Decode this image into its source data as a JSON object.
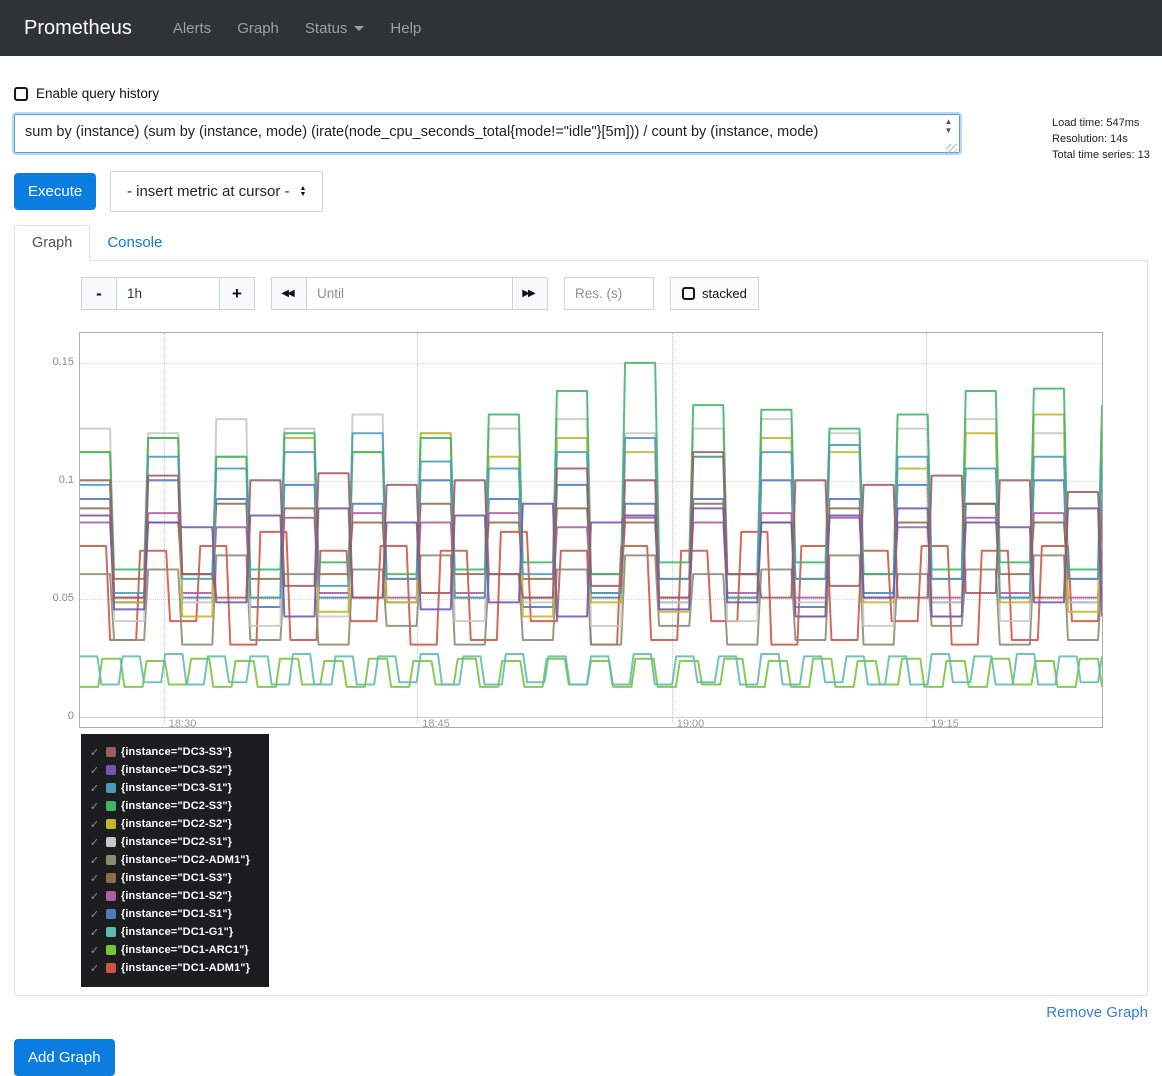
{
  "navbar": {
    "brand": "Prometheus",
    "items": [
      {
        "label": "Alerts"
      },
      {
        "label": "Graph"
      },
      {
        "label": "Status",
        "has_caret": true
      },
      {
        "label": "Help"
      }
    ]
  },
  "query": {
    "history_label": "Enable query history",
    "expression": "sum by (instance) (sum by (instance, mode) (irate(node_cpu_seconds_total{mode!=\"idle\"}[5m])) / count by (instance, mode)",
    "execute_label": "Execute",
    "insert_metric_label": "- insert metric at cursor -",
    "stats": {
      "load_time": "Load time: 547ms",
      "resolution": "Resolution: 14s",
      "total_series": "Total time series: 13"
    }
  },
  "tabs": [
    {
      "label": "Graph",
      "active": true
    },
    {
      "label": "Console",
      "active": false
    }
  ],
  "controls": {
    "minus_label": "-",
    "plus_label": "+",
    "range_value": "1h",
    "until_placeholder": "Until",
    "res_placeholder": "Res. (s)",
    "stacked_label": "stacked"
  },
  "chart_data": {
    "type": "line",
    "step": true,
    "title": "",
    "xlabel": "",
    "ylabel": "",
    "x_window_minutes": 60,
    "ylim": [
      0,
      0.163
    ],
    "grid": true,
    "legend_position": "bottom-left",
    "y_ticks": [
      {
        "v": 0,
        "label": "0"
      },
      {
        "v": 0.05,
        "label": "0.05"
      },
      {
        "v": 0.1,
        "label": "0.1"
      },
      {
        "v": 0.15,
        "label": "0.15"
      }
    ],
    "x_ticks": [
      {
        "f": 0.082,
        "label": "18:30"
      },
      {
        "f": 0.33,
        "label": "18:45"
      },
      {
        "f": 0.579,
        "label": "19:00"
      },
      {
        "f": 0.828,
        "label": "19:15"
      }
    ],
    "series": [
      {
        "name": "{instance=\"DC3-S3\"}",
        "color": "#a05b5e",
        "values": [
          0.1,
          0.05,
          0.102,
          0.06,
          0.05,
          0.1,
          0.055,
          0.103,
          0.05,
          0.098,
          0.052,
          0.1,
          0.06,
          0.05,
          0.105,
          0.055,
          0.1,
          0.05,
          0.112,
          0.06,
          0.05,
          0.1,
          0.055,
          0.098,
          0.05,
          0.102,
          0.052,
          0.1,
          0.05,
          0.095,
          0.06
        ]
      },
      {
        "name": "{instance=\"DC3-S2\"}",
        "color": "#7257b1",
        "values": [
          0.085,
          0.045,
          0.082,
          0.08,
          0.048,
          0.085,
          0.042,
          0.088,
          0.05,
          0.082,
          0.045,
          0.085,
          0.048,
          0.09,
          0.042,
          0.082,
          0.085,
          0.045,
          0.088,
          0.048,
          0.082,
          0.042,
          0.085,
          0.05,
          0.088,
          0.042,
          0.082,
          0.08,
          0.048,
          0.088,
          0.042
        ]
      },
      {
        "name": "{instance=\"DC3-S1\"}",
        "color": "#4a9cba",
        "values": [
          0.098,
          0.052,
          0.11,
          0.058,
          0.105,
          0.05,
          0.112,
          0.055,
          0.12,
          0.058,
          0.108,
          0.05,
          0.105,
          0.06,
          0.112,
          0.052,
          0.118,
          0.058,
          0.11,
          0.05,
          0.112,
          0.058,
          0.115,
          0.052,
          0.11,
          0.058,
          0.105,
          0.05,
          0.11,
          0.058,
          0.108
        ]
      },
      {
        "name": "{instance=\"DC2-S3\"}",
        "color": "#3fb666",
        "values": [
          0.112,
          0.062,
          0.118,
          0.06,
          0.11,
          0.062,
          0.12,
          0.065,
          0.112,
          0.06,
          0.118,
          0.062,
          0.128,
          0.065,
          0.138,
          0.06,
          0.15,
          0.065,
          0.132,
          0.06,
          0.13,
          0.065,
          0.122,
          0.06,
          0.128,
          0.062,
          0.138,
          0.065,
          0.139,
          0.062,
          0.132
        ]
      },
      {
        "name": "{instance=\"DC2-S2\"}",
        "color": "#c4b52e",
        "values": [
          0.112,
          0.048,
          0.118,
          0.042,
          0.11,
          0.05,
          0.118,
          0.044,
          0.112,
          0.048,
          0.12,
          0.05,
          0.11,
          0.042,
          0.118,
          0.048,
          0.112,
          0.044,
          0.11,
          0.05,
          0.118,
          0.042,
          0.112,
          0.048,
          0.105,
          0.042,
          0.12,
          0.048,
          0.128,
          0.044,
          0.118
        ]
      },
      {
        "name": "{instance=\"DC2-S1\"}",
        "color": "#c7c7c3",
        "values": [
          0.122,
          0.04,
          0.12,
          0.048,
          0.126,
          0.038,
          0.122,
          0.042,
          0.128,
          0.048,
          0.12,
          0.04,
          0.122,
          0.048,
          0.126,
          0.038,
          0.12,
          0.048,
          0.122,
          0.04,
          0.126,
          0.048,
          0.12,
          0.038,
          0.122,
          0.048,
          0.126,
          0.04,
          0.12,
          0.048,
          0.122
        ]
      },
      {
        "name": "{instance=\"DC2-ADM1\"}",
        "color": "#8b8b72",
        "values": [
          0.06,
          0.032,
          0.062,
          0.03,
          0.068,
          0.032,
          0.06,
          0.03,
          0.062,
          0.038,
          0.068,
          0.03,
          0.06,
          0.032,
          0.062,
          0.03,
          0.068,
          0.038,
          0.06,
          0.03,
          0.062,
          0.032,
          0.068,
          0.03,
          0.06,
          0.038,
          0.062,
          0.03,
          0.068,
          0.032,
          0.06
        ]
      },
      {
        "name": "{instance=\"DC1-S3\"}",
        "color": "#8c6d4c",
        "values": [
          0.088,
          0.058,
          0.082,
          0.06,
          0.09,
          0.058,
          0.088,
          0.06,
          0.082,
          0.058,
          0.09,
          0.06,
          0.082,
          0.058,
          0.088,
          0.06,
          0.082,
          0.058,
          0.09,
          0.06,
          0.082,
          0.058,
          0.088,
          0.06,
          0.082,
          0.058,
          0.09,
          0.06,
          0.082,
          0.058,
          0.088
        ]
      },
      {
        "name": "{instance=\"DC1-S2\"}",
        "color": "#aa5fa0",
        "values": [
          0.082,
          0.05,
          0.086,
          0.052,
          0.08,
          0.05,
          0.084,
          0.052,
          0.086,
          0.05,
          0.082,
          0.052,
          0.086,
          0.05,
          0.08,
          0.052,
          0.084,
          0.05,
          0.082,
          0.052,
          0.086,
          0.05,
          0.084,
          0.052,
          0.08,
          0.05,
          0.084,
          0.052,
          0.086,
          0.05,
          0.082
        ]
      },
      {
        "name": "{instance=\"DC1-S1\"}",
        "color": "#5079be",
        "values": [
          0.092,
          0.048,
          0.1,
          0.05,
          0.092,
          0.046,
          0.098,
          0.05,
          0.09,
          0.048,
          0.1,
          0.05,
          0.092,
          0.046,
          0.098,
          0.05,
          0.09,
          0.048,
          0.092,
          0.05,
          0.1,
          0.046,
          0.092,
          0.05,
          0.098,
          0.048,
          0.09,
          0.05,
          0.1,
          0.048,
          0.092
        ]
      },
      {
        "name": "{instance=\"DC1-G1\"}",
        "color": "#5dbcad",
        "values": [
          0.025,
          0.013,
          0.025,
          0.014,
          0.026,
          0.013,
          0.025,
          0.014,
          0.025,
          0.013,
          0.026,
          0.013,
          0.025,
          0.013,
          0.025,
          0.014,
          0.026,
          0.013,
          0.025,
          0.013,
          0.026,
          0.014,
          0.025,
          0.013,
          0.025,
          0.013,
          0.026,
          0.013,
          0.025,
          0.014,
          0.025,
          0.013,
          0.026,
          0.013,
          0.025,
          0.014,
          0.025,
          0.013,
          0.025,
          0.013,
          0.026,
          0.014,
          0.025,
          0.013,
          0.026,
          0.013,
          0.025,
          0.014,
          0.025
        ]
      },
      {
        "name": "{instance=\"DC1-ARC1\"}",
        "color": "#76c43e",
        "values": [
          0.012,
          0.024,
          0.012,
          0.023,
          0.013,
          0.024,
          0.012,
          0.023,
          0.012,
          0.024,
          0.013,
          0.023,
          0.012,
          0.024,
          0.012,
          0.023,
          0.013,
          0.024,
          0.012,
          0.023,
          0.012,
          0.024,
          0.013,
          0.023,
          0.012,
          0.024,
          0.012,
          0.023,
          0.013,
          0.024,
          0.012,
          0.023,
          0.012,
          0.024,
          0.012,
          0.023,
          0.013,
          0.024,
          0.012,
          0.023,
          0.012,
          0.024,
          0.013,
          0.023,
          0.012,
          0.024,
          0.012
        ]
      },
      {
        "name": "{instance=\"DC1-ADM1\"}",
        "color": "#cc5542",
        "values": [
          0.072,
          0.032,
          0.07,
          0.04,
          0.072,
          0.03,
          0.078,
          0.032,
          0.07,
          0.04,
          0.072,
          0.03,
          0.07,
          0.032,
          0.078,
          0.04,
          0.07,
          0.03,
          0.072,
          0.032,
          0.07,
          0.04,
          0.078,
          0.03,
          0.072,
          0.032,
          0.07,
          0.04,
          0.072,
          0.03,
          0.07,
          0.032,
          0.072,
          0.04,
          0.07
        ]
      }
    ]
  },
  "footer": {
    "remove_graph_label": "Remove Graph",
    "add_graph_label": "Add Graph"
  }
}
